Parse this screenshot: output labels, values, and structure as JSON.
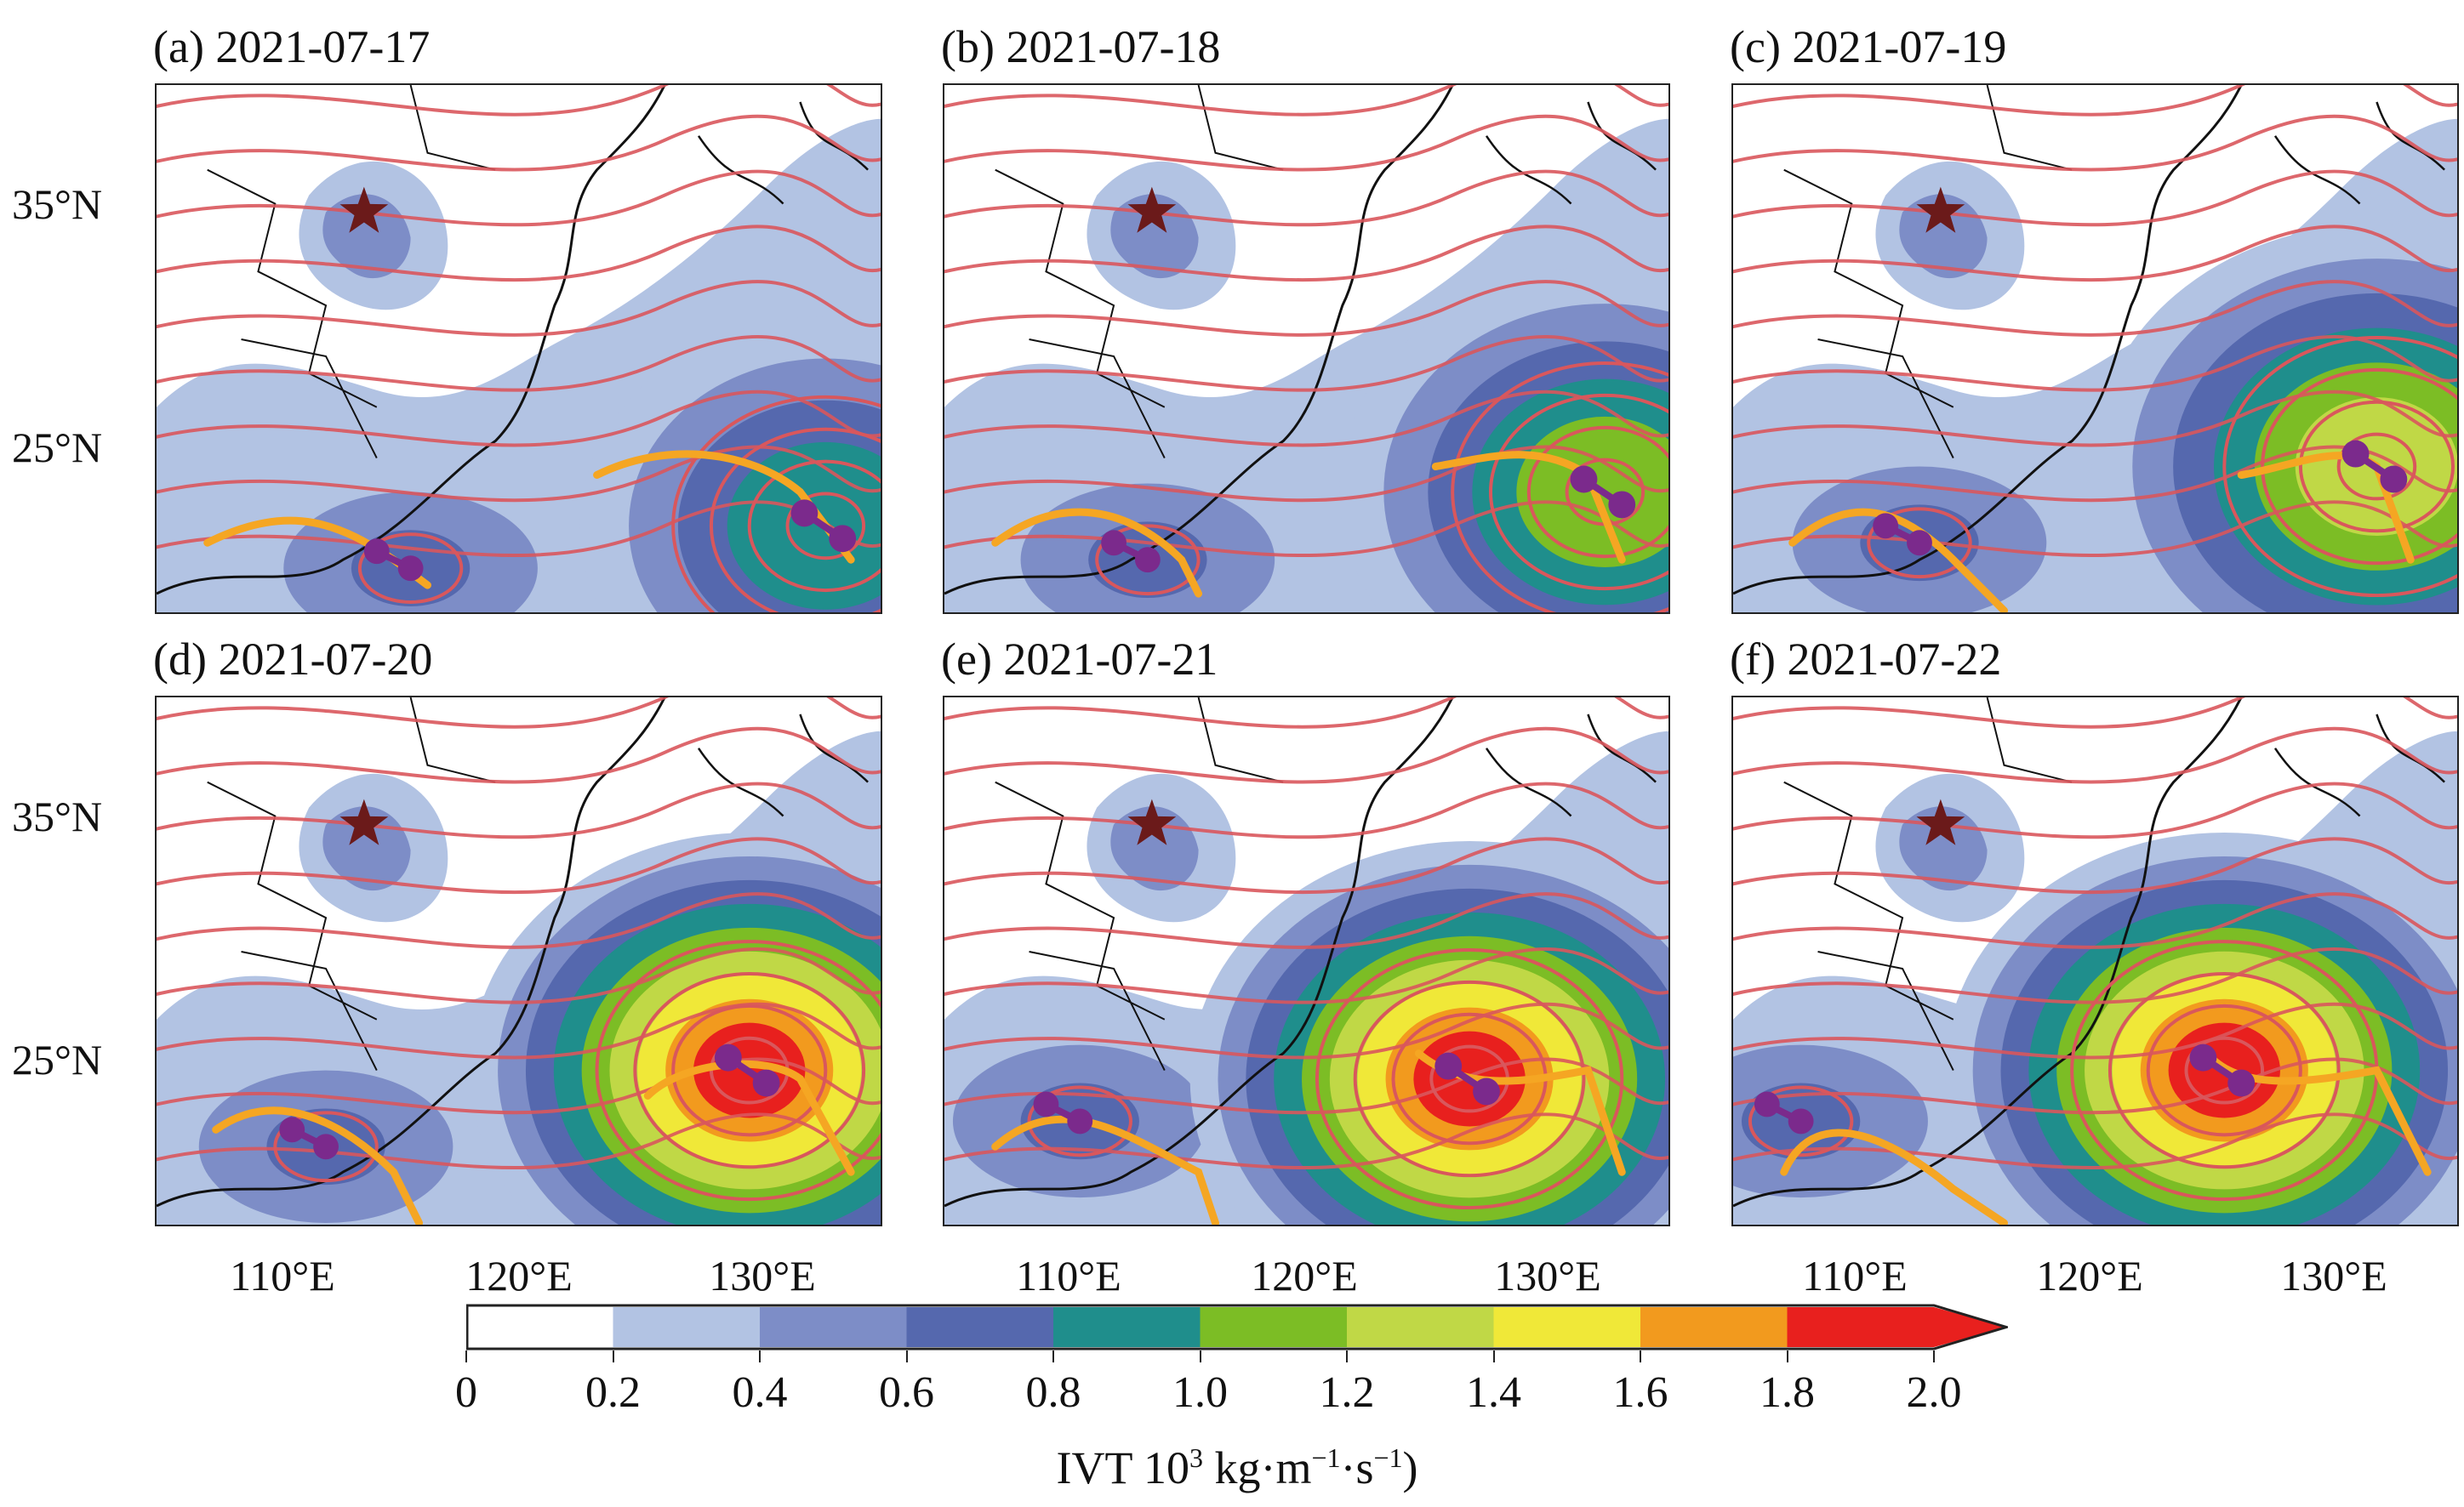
{
  "panels": [
    {
      "label": "(a) 2021-07-17"
    },
    {
      "label": "(b) 2021-07-18"
    },
    {
      "label": "(c) 2021-07-19"
    },
    {
      "label": "(d) 2021-07-20"
    },
    {
      "label": "(e) 2021-07-21"
    },
    {
      "label": "(f) 2021-07-22"
    }
  ],
  "axes": {
    "lat_labels": [
      "35°N",
      "25°N"
    ],
    "lon_labels": [
      "110°E",
      "120°E",
      "130°E"
    ]
  },
  "colorbar": {
    "levels": [
      "0",
      "0.2",
      "0.4",
      "0.6",
      "0.8",
      "1.0",
      "1.2",
      "1.4",
      "1.6",
      "1.8",
      "2.0"
    ],
    "colors": [
      "#ffffff",
      "#b2c3e3",
      "#7d8dc7",
      "#5568ae",
      "#1f8e8c",
      "#7cbd25",
      "#c0d846",
      "#f0e838",
      "#f29a1e",
      "#e8201e"
    ],
    "label_main": "IVT 10",
    "label_sup": "3",
    "label_rest": " kg·m",
    "label_sup2": "−1",
    "label_mid": "·s",
    "label_sup3": "−1",
    "label_end": ")"
  },
  "legend_markers": {
    "star_color": "#6b1a1a",
    "streamline_color": "#d9575c",
    "track_color": "#f5a623",
    "typhoon_center_color": "#7b2a8c"
  }
}
